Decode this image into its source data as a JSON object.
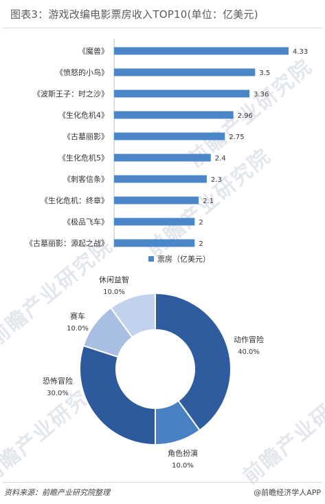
{
  "header": {
    "title": "图表3：游戏改编电影票房收入TOP10(单位：亿美元)"
  },
  "footer": {
    "source": "资料来源：前瞻产业研究院整理",
    "brand": "@前瞻经济学人APP"
  },
  "watermark": {
    "text": "前瞻产业研究院"
  },
  "colors": {
    "bar": "#4a86c8",
    "donut": [
      "#2e5c9e",
      "#4a81c4",
      "#2c5a9c",
      "#a8bfe3",
      "#c2d2ed"
    ]
  },
  "chart_data": [
    {
      "type": "bar",
      "orientation": "horizontal",
      "categories": [
        "《魔兽》",
        "《愤怒的小鸟》",
        "《波斯王子：时之沙》",
        "《生化危机4》",
        "《古墓丽影》",
        "《生化危机5》",
        "《刺客信条》",
        "《生化危机：终章》",
        "《极品飞车》",
        "《古墓丽影：源起之战》"
      ],
      "series": [
        {
          "name": "票房（亿美元）",
          "values": [
            4.33,
            3.5,
            3.36,
            2.96,
            2.75,
            2.4,
            2.3,
            2.1,
            2,
            2
          ]
        }
      ],
      "value_labels": [
        "4.33",
        "3.5",
        "3.36",
        "2.96",
        "2.75",
        "2.4",
        "2.3",
        "2.1",
        "2",
        "2"
      ],
      "xlim": [
        0,
        4.5
      ],
      "legend": "bottom-right",
      "grid": false
    },
    {
      "type": "pie",
      "style": "donut",
      "slices": [
        {
          "label": "动作冒险",
          "value": 40.0,
          "pct": "40.0%"
        },
        {
          "label": "角色扮演",
          "value": 10.0,
          "pct": "10.0%"
        },
        {
          "label": "恐怖冒险",
          "value": 30.0,
          "pct": "30.0%"
        },
        {
          "label": "赛车",
          "value": 10.0,
          "pct": "10.0%"
        },
        {
          "label": "休闲益智",
          "value": 10.0,
          "pct": "10.0%"
        }
      ]
    }
  ]
}
